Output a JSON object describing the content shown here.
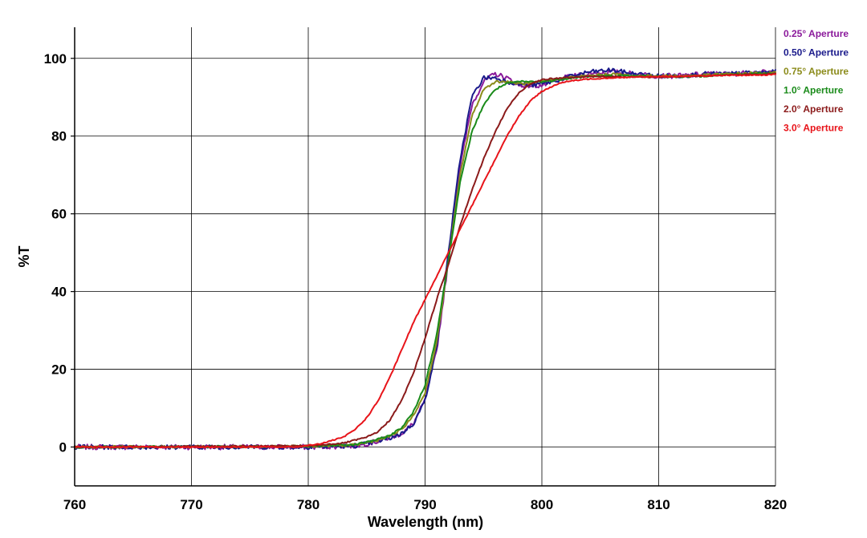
{
  "chart_data": {
    "type": "line",
    "title": "",
    "xlabel": "Wavelength (nm)",
    "ylabel": "%T",
    "xlim": [
      760,
      820
    ],
    "ylim": [
      -10,
      108
    ],
    "x_ticks": [
      760,
      770,
      780,
      790,
      800,
      810,
      820
    ],
    "y_ticks": [
      0,
      20,
      40,
      60,
      80,
      100
    ],
    "grid": true,
    "legend_position": "top-right",
    "series": [
      {
        "name": "0.25° Aperture",
        "color": "#8B1A9B",
        "points": [
          [
            760,
            0
          ],
          [
            780,
            0
          ],
          [
            784,
            0.3
          ],
          [
            786,
            1.5
          ],
          [
            787,
            2.5
          ],
          [
            788,
            3.5
          ],
          [
            789,
            6
          ],
          [
            790,
            12
          ],
          [
            791,
            25
          ],
          [
            792,
            48
          ],
          [
            793,
            72
          ],
          [
            794,
            88
          ],
          [
            795,
            94
          ],
          [
            796,
            96
          ],
          [
            797,
            95
          ],
          [
            798,
            93
          ],
          [
            799,
            93
          ],
          [
            800,
            93
          ],
          [
            801,
            94
          ],
          [
            802,
            95
          ],
          [
            804,
            96
          ],
          [
            806,
            96.5
          ],
          [
            808,
            96
          ],
          [
            810,
            95.5
          ],
          [
            812,
            95.5
          ],
          [
            814,
            96
          ],
          [
            816,
            96
          ],
          [
            818,
            96.3
          ],
          [
            820,
            96.5
          ]
        ]
      },
      {
        "name": "0.50° Aperture",
        "color": "#1A1A8B",
        "points": [
          [
            760,
            0
          ],
          [
            780,
            0
          ],
          [
            784,
            0.3
          ],
          [
            786,
            1.5
          ],
          [
            787,
            2.3
          ],
          [
            788,
            3.5
          ],
          [
            789,
            6
          ],
          [
            790,
            12
          ],
          [
            791,
            26
          ],
          [
            792,
            50
          ],
          [
            793,
            74
          ],
          [
            794,
            90
          ],
          [
            795,
            95
          ],
          [
            796,
            95
          ],
          [
            797,
            94
          ],
          [
            798,
            93.5
          ],
          [
            799,
            93
          ],
          [
            800,
            93.5
          ],
          [
            801,
            94
          ],
          [
            802,
            95
          ],
          [
            804,
            96.5
          ],
          [
            806,
            97
          ],
          [
            808,
            96
          ],
          [
            810,
            95.5
          ],
          [
            812,
            95.5
          ],
          [
            814,
            96
          ],
          [
            816,
            96
          ],
          [
            818,
            96.3
          ],
          [
            820,
            96.5
          ]
        ]
      },
      {
        "name": "0.75° Aperture",
        "color": "#8B8B1A",
        "points": [
          [
            760,
            0
          ],
          [
            780,
            0.2
          ],
          [
            784,
            0.5
          ],
          [
            786,
            1.8
          ],
          [
            787,
            2.8
          ],
          [
            788,
            4.5
          ],
          [
            789,
            8
          ],
          [
            790,
            14
          ],
          [
            791,
            27
          ],
          [
            792,
            48
          ],
          [
            793,
            70
          ],
          [
            794,
            85
          ],
          [
            795,
            92
          ],
          [
            796,
            94
          ],
          [
            797,
            94
          ],
          [
            798,
            93.5
          ],
          [
            799,
            93.5
          ],
          [
            800,
            94
          ],
          [
            801,
            94.5
          ],
          [
            802,
            95
          ],
          [
            804,
            95.5
          ],
          [
            806,
            96
          ],
          [
            808,
            95.5
          ],
          [
            810,
            95.5
          ],
          [
            812,
            95.5
          ],
          [
            814,
            95.7
          ],
          [
            816,
            96
          ],
          [
            818,
            96.2
          ],
          [
            820,
            96.3
          ]
        ]
      },
      {
        "name": "1.0° Aperture",
        "color": "#1A8B1A",
        "points": [
          [
            760,
            0
          ],
          [
            780,
            0.2
          ],
          [
            784,
            0.6
          ],
          [
            786,
            2
          ],
          [
            787,
            3
          ],
          [
            788,
            5
          ],
          [
            789,
            9
          ],
          [
            790,
            16
          ],
          [
            791,
            29
          ],
          [
            792,
            48
          ],
          [
            793,
            68
          ],
          [
            794,
            81
          ],
          [
            795,
            88
          ],
          [
            796,
            92
          ],
          [
            797,
            93.5
          ],
          [
            798,
            94
          ],
          [
            799,
            94
          ],
          [
            800,
            94
          ],
          [
            801,
            94.3
          ],
          [
            802,
            94.8
          ],
          [
            804,
            95.3
          ],
          [
            806,
            95.5
          ],
          [
            808,
            95.5
          ],
          [
            810,
            95.3
          ],
          [
            812,
            95.3
          ],
          [
            814,
            95.5
          ],
          [
            816,
            95.8
          ],
          [
            818,
            96
          ],
          [
            820,
            96.2
          ]
        ]
      },
      {
        "name": "2.0° Aperture",
        "color": "#8B1A1A",
        "points": [
          [
            760,
            0
          ],
          [
            780,
            0.3
          ],
          [
            783,
            1
          ],
          [
            785,
            2.5
          ],
          [
            786,
            4
          ],
          [
            787,
            7
          ],
          [
            788,
            12
          ],
          [
            789,
            19
          ],
          [
            790,
            28
          ],
          [
            791,
            38
          ],
          [
            792,
            47
          ],
          [
            793,
            57
          ],
          [
            794,
            66
          ],
          [
            795,
            74
          ],
          [
            796,
            81
          ],
          [
            797,
            87
          ],
          [
            798,
            91
          ],
          [
            799,
            93.5
          ],
          [
            800,
            94.5
          ],
          [
            801,
            94.8
          ],
          [
            802,
            95
          ],
          [
            804,
            95.3
          ],
          [
            806,
            95.3
          ],
          [
            808,
            95.2
          ],
          [
            810,
            95.2
          ],
          [
            812,
            95.3
          ],
          [
            814,
            95.5
          ],
          [
            816,
            95.7
          ],
          [
            818,
            95.9
          ],
          [
            820,
            96
          ]
        ]
      },
      {
        "name": "3.0° Aperture",
        "color": "#E8141A",
        "points": [
          [
            760,
            0
          ],
          [
            779,
            0
          ],
          [
            781,
            0.8
          ],
          [
            783,
            2.5
          ],
          [
            784,
            4.5
          ],
          [
            785,
            7.5
          ],
          [
            786,
            12
          ],
          [
            787,
            18
          ],
          [
            788,
            25
          ],
          [
            789,
            32
          ],
          [
            790,
            38
          ],
          [
            791,
            44
          ],
          [
            792,
            50
          ],
          [
            793,
            56
          ],
          [
            794,
            62
          ],
          [
            795,
            68
          ],
          [
            796,
            74
          ],
          [
            797,
            80
          ],
          [
            798,
            85
          ],
          [
            799,
            89
          ],
          [
            800,
            91.5
          ],
          [
            801,
            93
          ],
          [
            802,
            94
          ],
          [
            804,
            94.7
          ],
          [
            806,
            95
          ],
          [
            808,
            95.2
          ],
          [
            810,
            95.3
          ],
          [
            812,
            95.4
          ],
          [
            814,
            95.5
          ],
          [
            816,
            95.6
          ],
          [
            818,
            95.7
          ],
          [
            820,
            95.8
          ]
        ]
      }
    ]
  }
}
